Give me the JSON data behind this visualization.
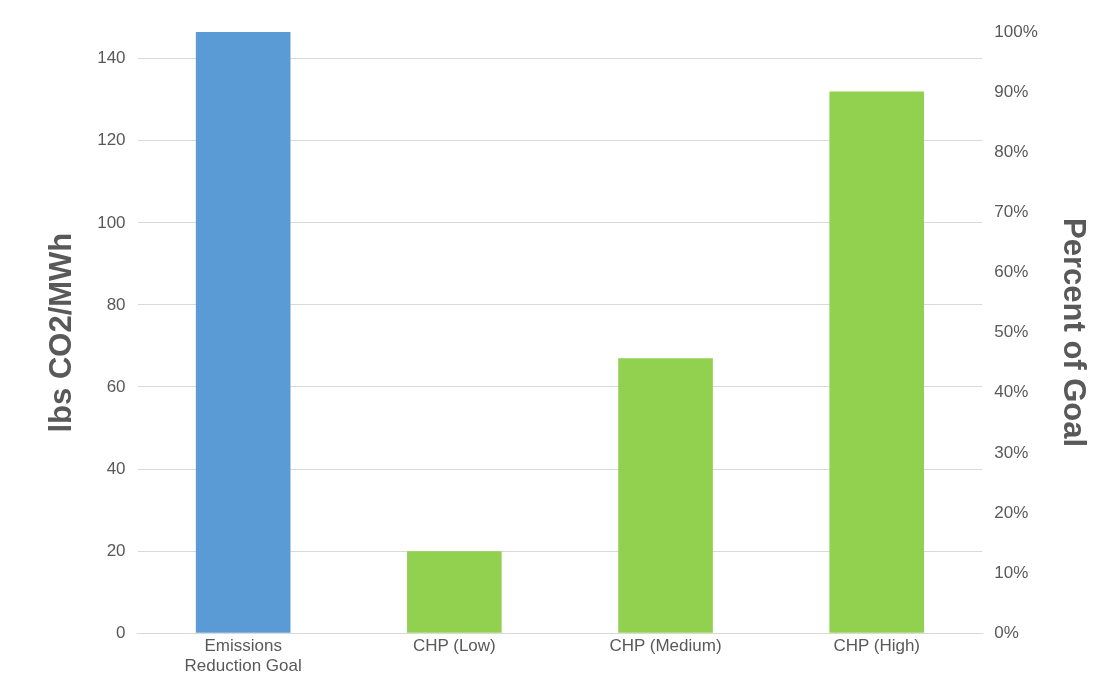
{
  "chart_data": {
    "type": "bar",
    "categories": [
      "Emissions Reduction Goal",
      "CHP (Low)",
      "CHP (Medium)",
      "CHP (High)"
    ],
    "values": [
      146.5,
      20,
      67,
      132
    ],
    "colors": [
      "#5b9bd5",
      "#92d050",
      "#92d050",
      "#92d050"
    ],
    "ylabel": "lbs CO2/MWh",
    "y2label": "Percent of Goal",
    "ylim": [
      0,
      146.5
    ],
    "yticks": [
      0,
      20,
      40,
      60,
      80,
      100,
      120,
      140
    ],
    "y2lim": [
      0,
      100
    ],
    "y2ticks": [
      {
        "value": 0,
        "label": "0%"
      },
      {
        "value": 10,
        "label": "10%"
      },
      {
        "value": 20,
        "label": "20%"
      },
      {
        "value": 30,
        "label": "30%"
      },
      {
        "value": 40,
        "label": "40%"
      },
      {
        "value": 50,
        "label": "50%"
      },
      {
        "value": 60,
        "label": "60%"
      },
      {
        "value": 70,
        "label": "70%"
      },
      {
        "value": 80,
        "label": "80%"
      },
      {
        "value": 90,
        "label": "90%"
      },
      {
        "value": 100,
        "label": "100%"
      }
    ],
    "grid": "y",
    "legend": false
  }
}
